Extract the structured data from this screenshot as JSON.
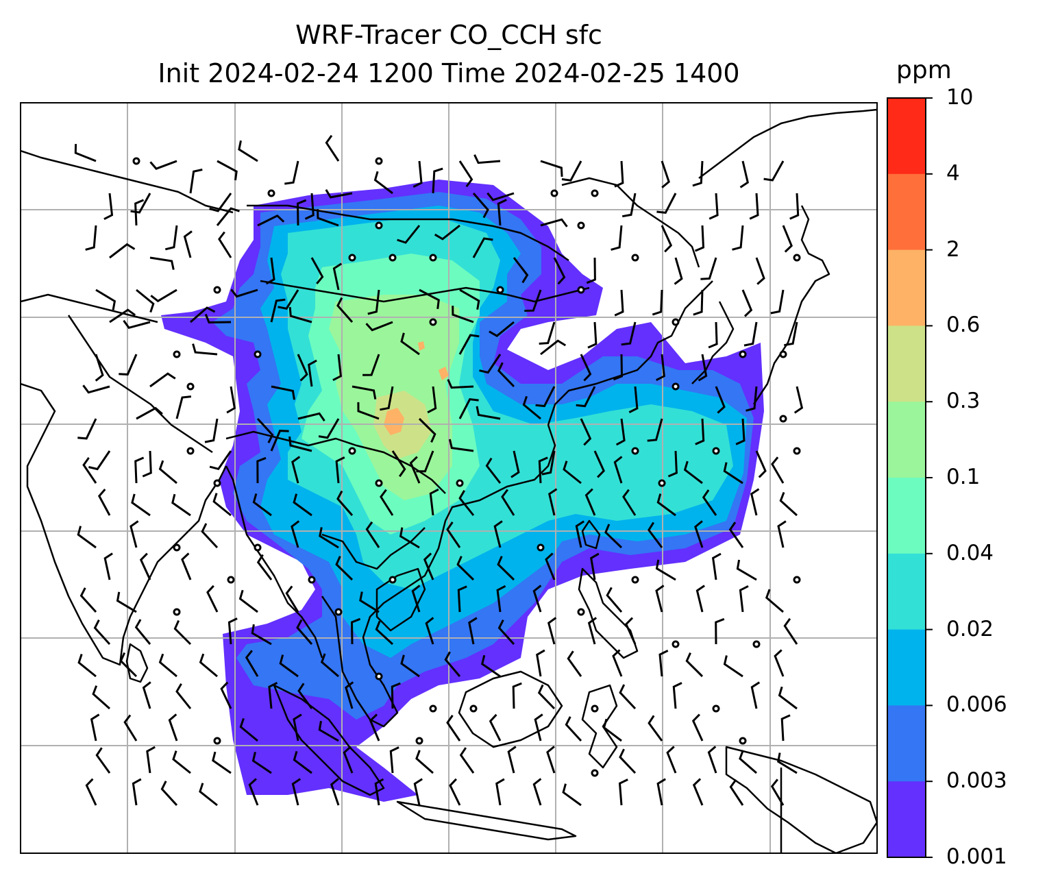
{
  "title": {
    "line1": "WRF-Tracer CO_CCH sfc",
    "line2": "Init 2024-02-24 1200 Time 2024-02-25 1400"
  },
  "colorbar": {
    "unit": "ppm",
    "levels": [
      "10",
      "4",
      "2",
      "0.6",
      "0.3",
      "0.1",
      "0.04",
      "0.02",
      "0.006",
      "0.003",
      "0.001"
    ],
    "colors": [
      "#ff2a17",
      "#ff6f3a",
      "#fdb266",
      "#cde288",
      "#9bf59b",
      "#6cfcbf",
      "#33e0d6",
      "#00b3ec",
      "#3476f4",
      "#6330fe"
    ]
  },
  "map": {
    "plume_colors": {
      "low": "#6330fe",
      "low2": "#3476f4",
      "mid": "#00b3ec",
      "mid2": "#33e0d6",
      "high": "#6cfcbf",
      "high2": "#9bf59b",
      "peak": "#cde288",
      "peak2": "#fdb266"
    },
    "gridline_color": "#b0b0b0",
    "wind_barbs": "black barbs and calm circles"
  }
}
